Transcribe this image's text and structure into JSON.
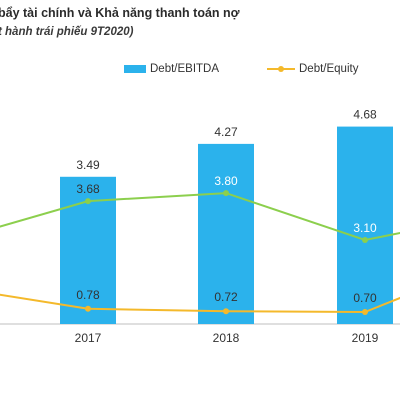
{
  "header": {
    "title": "bẩy tài chính và Khả năng thanh toán nợ",
    "subtitle": "t hành trái phiếu 9T2020)"
  },
  "colors": {
    "bar": "#2bb2ec",
    "debt_equity_line": "#f4b92b",
    "third_line": "#8ccf4d",
    "axis": "#bfbfbf",
    "label_dark": "#333333",
    "label_light": "#ffffff"
  },
  "chart_data": {
    "type": "bar",
    "title": "bẩy tài chính và Khả năng thanh toán nợ",
    "categories": [
      "2017",
      "2018",
      "2019"
    ],
    "legend_position": "top",
    "grid": false,
    "series": [
      {
        "name": "Debt/EBITDA",
        "type": "bar",
        "values": [
          3.49,
          4.27,
          4.68
        ]
      },
      {
        "name": "Debt/Equity",
        "type": "line",
        "values": [
          0.78,
          0.72,
          0.7
        ]
      },
      {
        "name": "",
        "type": "line",
        "values": [
          3.68,
          3.8,
          3.1
        ]
      }
    ],
    "ylim": [
      0,
      5.5
    ]
  }
}
